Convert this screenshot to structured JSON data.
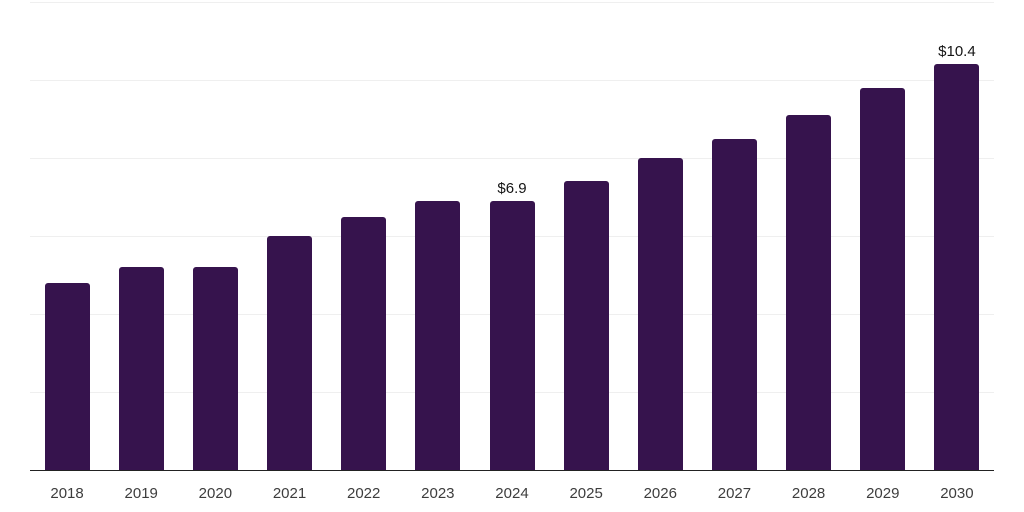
{
  "chart_data": {
    "type": "bar",
    "title": "",
    "xlabel": "",
    "ylabel": "",
    "categories": [
      "2018",
      "2019",
      "2020",
      "2021",
      "2022",
      "2023",
      "2024",
      "2025",
      "2026",
      "2027",
      "2028",
      "2029",
      "2030"
    ],
    "values": [
      4.8,
      5.2,
      5.2,
      6.0,
      6.5,
      6.9,
      6.9,
      7.4,
      8.0,
      8.5,
      9.1,
      9.8,
      10.4
    ],
    "data_labels": {
      "2024": "$6.9",
      "2030": "$10.4"
    },
    "ylim": [
      0,
      12
    ],
    "gridline_step": 2,
    "grid": true,
    "legend": false,
    "colors": {
      "bar": "#36134D",
      "gridline": "#efefef",
      "axis": "#222222",
      "x_label": "#3d3d3d",
      "value_label": "#141414"
    }
  }
}
